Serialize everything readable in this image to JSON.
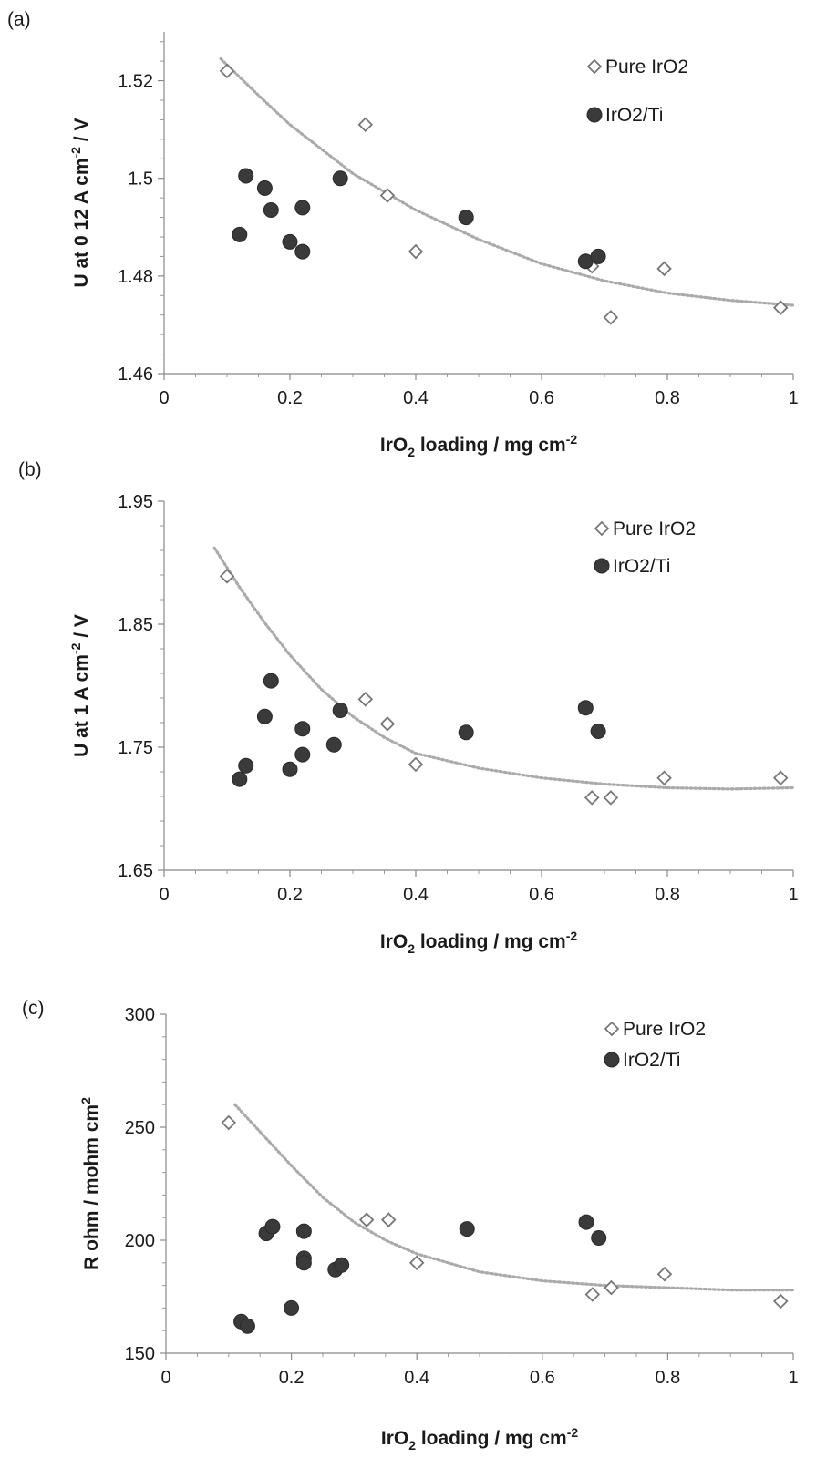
{
  "chart_data": [
    {
      "panel_label": "(a)",
      "type": "scatter",
      "ylabel": "U at 0 12 A cm⁻² / V",
      "xlabel": "IrO₂ loading / mg cm⁻²",
      "xlim": [
        0,
        1
      ],
      "ylim": [
        1.46,
        1.53
      ],
      "xticks": [
        0,
        0.2,
        0.4,
        0.6,
        0.8,
        1
      ],
      "xtick_labels": [
        "0",
        "0.2",
        "0.4",
        "0.6",
        "0.8",
        "1"
      ],
      "yticks": [
        1.46,
        1.48,
        1.5,
        1.52
      ],
      "ytick_labels": [
        "1.46",
        "1.48",
        "1.5",
        "1.52"
      ],
      "legend_position": "top-right",
      "series": [
        {
          "name": "Pure IrO2",
          "marker": "open-diamond",
          "color": "#777777",
          "x": [
            0.1,
            0.32,
            0.355,
            0.4,
            0.68,
            0.71,
            0.795,
            0.98
          ],
          "y": [
            1.522,
            1.511,
            1.4965,
            1.485,
            1.482,
            1.4715,
            1.4815,
            1.4735
          ]
        },
        {
          "name": "IrO2/Ti",
          "marker": "filled-circle",
          "color": "#3a3a3a",
          "x": [
            0.12,
            0.13,
            0.16,
            0.17,
            0.2,
            0.22,
            0.22,
            0.28,
            0.48,
            0.67,
            0.69
          ],
          "y": [
            1.4885,
            1.5005,
            1.498,
            1.4935,
            1.487,
            1.485,
            1.494,
            1.5,
            1.492,
            1.483,
            1.484
          ]
        }
      ],
      "trendline": {
        "style": "dotted",
        "color": "#aaaaaa",
        "x": [
          0.09,
          0.15,
          0.2,
          0.3,
          0.4,
          0.5,
          0.6,
          0.7,
          0.8,
          0.9,
          1.0
        ],
        "y": [
          1.5245,
          1.517,
          1.511,
          1.501,
          1.4935,
          1.4875,
          1.4825,
          1.479,
          1.4765,
          1.475,
          1.474
        ]
      }
    },
    {
      "panel_label": "(b)",
      "type": "scatter",
      "ylabel": "U at 1 A cm⁻² / V",
      "xlabel": "IrO₂ loading / mg cm⁻²",
      "xlim": [
        0,
        1
      ],
      "ylim": [
        1.65,
        1.95
      ],
      "xticks": [
        0,
        0.2,
        0.4,
        0.6,
        0.8,
        1
      ],
      "xtick_labels": [
        "0",
        "0.2",
        "0.4",
        "0.6",
        "0.8",
        "1"
      ],
      "yticks": [
        1.65,
        1.75,
        1.85,
        1.95
      ],
      "ytick_labels": [
        "1.65",
        "1.75",
        "1.85",
        "1.95"
      ],
      "legend_position": "top-right",
      "series": [
        {
          "name": "Pure IrO2",
          "marker": "open-diamond",
          "color": "#777777",
          "x": [
            0.1,
            0.32,
            0.355,
            0.4,
            0.68,
            0.71,
            0.795,
            0.98
          ],
          "y": [
            1.889,
            1.789,
            1.769,
            1.736,
            1.709,
            1.709,
            1.725,
            1.725
          ]
        },
        {
          "name": "IrO2/Ti",
          "marker": "filled-circle",
          "color": "#3a3a3a",
          "x": [
            0.12,
            0.13,
            0.16,
            0.17,
            0.2,
            0.22,
            0.22,
            0.27,
            0.28,
            0.48,
            0.67,
            0.69
          ],
          "y": [
            1.724,
            1.735,
            1.775,
            1.804,
            1.732,
            1.744,
            1.765,
            1.752,
            1.78,
            1.762,
            1.782,
            1.763
          ]
        }
      ],
      "trendline": {
        "style": "dotted",
        "color": "#aaaaaa",
        "x": [
          0.08,
          0.12,
          0.16,
          0.2,
          0.25,
          0.3,
          0.35,
          0.4,
          0.5,
          0.6,
          0.7,
          0.8,
          0.9,
          1.0
        ],
        "y": [
          1.912,
          1.88,
          1.851,
          1.825,
          1.797,
          1.775,
          1.758,
          1.745,
          1.733,
          1.725,
          1.72,
          1.717,
          1.716,
          1.717
        ]
      }
    },
    {
      "panel_label": "(c)",
      "type": "scatter",
      "ylabel": "R ohm / mohm cm²",
      "xlabel": "IrO₂ loading / mg cm⁻²",
      "xlim": [
        0,
        1
      ],
      "ylim": [
        150,
        300
      ],
      "xticks": [
        0,
        0.2,
        0.4,
        0.6,
        0.8,
        1
      ],
      "xtick_labels": [
        "0",
        "0.2",
        "0.4",
        "0.6",
        "0.8",
        "1"
      ],
      "yticks": [
        150,
        200,
        250,
        300
      ],
      "ytick_labels": [
        "150",
        "200",
        "250",
        "300"
      ],
      "legend_position": "top-right",
      "series": [
        {
          "name": "Pure IrO2",
          "marker": "open-diamond",
          "color": "#777777",
          "x": [
            0.1,
            0.32,
            0.355,
            0.4,
            0.68,
            0.71,
            0.795,
            0.98
          ],
          "y": [
            252,
            209,
            209,
            190,
            176,
            179,
            185,
            173
          ]
        },
        {
          "name": "IrO2/Ti",
          "marker": "filled-circle",
          "color": "#3a3a3a",
          "x": [
            0.12,
            0.13,
            0.16,
            0.17,
            0.2,
            0.22,
            0.22,
            0.22,
            0.27,
            0.28,
            0.48,
            0.67,
            0.69
          ],
          "y": [
            164,
            162,
            203,
            206,
            170,
            204,
            192,
            190,
            187,
            189,
            205,
            208,
            201
          ]
        }
      ],
      "trendline": {
        "style": "dotted",
        "color": "#aaaaaa",
        "x": [
          0.11,
          0.15,
          0.2,
          0.25,
          0.3,
          0.35,
          0.4,
          0.5,
          0.6,
          0.7,
          0.8,
          0.9,
          1.0
        ],
        "y": [
          260,
          248,
          233,
          219,
          208,
          200,
          194,
          186,
          182,
          180,
          179,
          178,
          178
        ]
      }
    }
  ]
}
